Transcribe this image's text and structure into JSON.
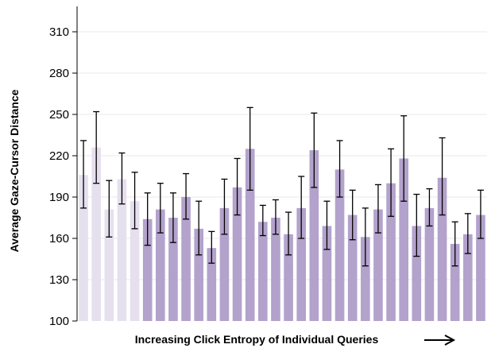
{
  "chart_data": {
    "type": "bar",
    "xlabel": "Increasing Click Entropy of Individual Queries",
    "ylabel": "Average Gaze-Cursor Distance",
    "ylim": [
      100,
      320
    ],
    "yticks": [
      100,
      130,
      160,
      190,
      220,
      250,
      280,
      310
    ],
    "grid": true,
    "colors": {
      "light": "#e6e0ee",
      "dark": "#b3a2cc",
      "errorbar": "#000000",
      "grid": "#e8e8e8"
    },
    "bars": [
      {
        "value": 206,
        "low": 182,
        "high": 231,
        "group": "light"
      },
      {
        "value": 226,
        "low": 200,
        "high": 252,
        "group": "light"
      },
      {
        "value": 181,
        "low": 161,
        "high": 202,
        "group": "light"
      },
      {
        "value": 203,
        "low": 185,
        "high": 222,
        "group": "light"
      },
      {
        "value": 187,
        "low": 167,
        "high": 208,
        "group": "light"
      },
      {
        "value": 174,
        "low": 155,
        "high": 193,
        "group": "dark"
      },
      {
        "value": 181,
        "low": 164,
        "high": 200,
        "group": "dark"
      },
      {
        "value": 175,
        "low": 157,
        "high": 193,
        "group": "dark"
      },
      {
        "value": 190,
        "low": 174,
        "high": 207,
        "group": "dark"
      },
      {
        "value": 167,
        "low": 148,
        "high": 187,
        "group": "dark"
      },
      {
        "value": 153,
        "low": 142,
        "high": 165,
        "group": "dark"
      },
      {
        "value": 182,
        "low": 163,
        "high": 203,
        "group": "dark"
      },
      {
        "value": 197,
        "low": 177,
        "high": 218,
        "group": "dark"
      },
      {
        "value": 225,
        "low": 195,
        "high": 255,
        "group": "dark"
      },
      {
        "value": 172,
        "low": 162,
        "high": 184,
        "group": "dark"
      },
      {
        "value": 175,
        "low": 163,
        "high": 188,
        "group": "dark"
      },
      {
        "value": 163,
        "low": 148,
        "high": 179,
        "group": "dark"
      },
      {
        "value": 182,
        "low": 160,
        "high": 205,
        "group": "dark"
      },
      {
        "value": 224,
        "low": 197,
        "high": 251,
        "group": "dark"
      },
      {
        "value": 169,
        "low": 152,
        "high": 187,
        "group": "dark"
      },
      {
        "value": 210,
        "low": 190,
        "high": 231,
        "group": "dark"
      },
      {
        "value": 177,
        "low": 159,
        "high": 195,
        "group": "dark"
      },
      {
        "value": 161,
        "low": 140,
        "high": 182,
        "group": "dark"
      },
      {
        "value": 181,
        "low": 164,
        "high": 199,
        "group": "dark"
      },
      {
        "value": 200,
        "low": 176,
        "high": 225,
        "group": "dark"
      },
      {
        "value": 218,
        "low": 187,
        "high": 249,
        "group": "dark"
      },
      {
        "value": 169,
        "low": 147,
        "high": 192,
        "group": "dark"
      },
      {
        "value": 182,
        "low": 169,
        "high": 196,
        "group": "dark"
      },
      {
        "value": 204,
        "low": 177,
        "high": 233,
        "group": "dark"
      },
      {
        "value": 156,
        "low": 140,
        "high": 172,
        "group": "dark"
      },
      {
        "value": 163,
        "low": 149,
        "high": 178,
        "group": "dark"
      },
      {
        "value": 177,
        "low": 160,
        "high": 195,
        "group": "dark"
      }
    ]
  }
}
